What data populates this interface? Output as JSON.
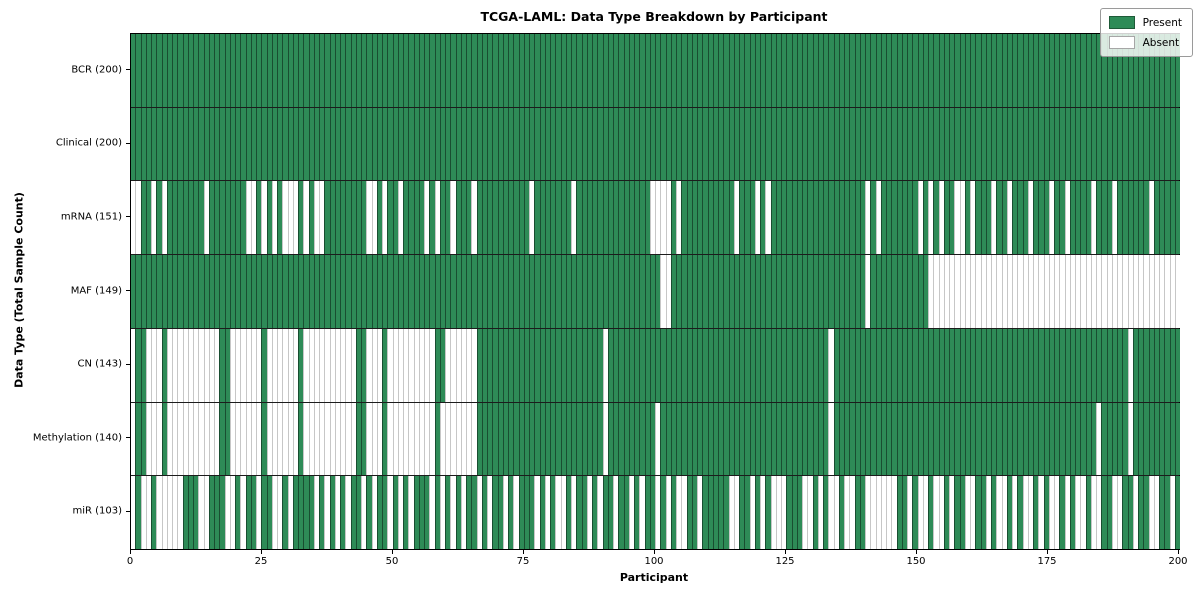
{
  "title": "TCGA-LAML: Data Type Breakdown by Participant",
  "x_axis": {
    "label": "Participant",
    "ticks": [
      0,
      25,
      50,
      75,
      100,
      125,
      150,
      175,
      200
    ]
  },
  "y_axis": {
    "label": "Data Type (Total Sample Count)"
  },
  "legend": {
    "present_label": "Present",
    "absent_label": "Absent"
  },
  "colors": {
    "present": "#2e8b57",
    "absent": "#ffffff",
    "plot_border": "#000000"
  },
  "chart_data": {
    "type": "heatmap",
    "x_range": [
      0,
      200
    ],
    "n_participants": 200,
    "legend_position": "upper right",
    "grid": "cell-borders",
    "rows": [
      {
        "label": "BCR (200)",
        "present_count": 200,
        "absent": []
      },
      {
        "label": "Clinical (200)",
        "present_count": 200,
        "absent": []
      },
      {
        "label": "mRNA (151)",
        "present_count": 151,
        "absent": [
          0,
          1,
          4,
          6,
          14,
          22,
          23,
          25,
          27,
          29,
          30,
          31,
          33,
          35,
          36,
          45,
          46,
          48,
          51,
          56,
          58,
          61,
          65,
          76,
          84,
          99,
          100,
          101,
          102,
          104,
          115,
          119,
          121,
          140,
          142,
          150,
          152,
          154,
          157,
          158,
          160,
          164,
          167,
          171,
          175,
          178,
          183,
          187,
          194
        ]
      },
      {
        "label": "MAF (149)",
        "present_count": 149,
        "absent": [
          101,
          102,
          140,
          152,
          153,
          154,
          155,
          156,
          157,
          158,
          159,
          160,
          161,
          162,
          163,
          164,
          165,
          166,
          167,
          168,
          169,
          170,
          171,
          172,
          173,
          174,
          175,
          176,
          177,
          178,
          179,
          180,
          181,
          182,
          183,
          184,
          185,
          186,
          187,
          188,
          189,
          190,
          191,
          192,
          193,
          194,
          195,
          196,
          197,
          198,
          199
        ]
      },
      {
        "label": "CN (143)",
        "present_count": 143,
        "absent": [
          0,
          3,
          4,
          5,
          7,
          8,
          9,
          10,
          11,
          12,
          13,
          14,
          15,
          16,
          19,
          20,
          21,
          22,
          23,
          24,
          26,
          27,
          28,
          29,
          30,
          31,
          33,
          34,
          35,
          36,
          37,
          38,
          39,
          40,
          41,
          42,
          45,
          46,
          47,
          49,
          50,
          51,
          52,
          53,
          54,
          55,
          56,
          57,
          60,
          61,
          62,
          63,
          64,
          65,
          90,
          133,
          190
        ]
      },
      {
        "label": "Methylation (140)",
        "present_count": 140,
        "absent": [
          0,
          3,
          4,
          5,
          7,
          8,
          9,
          10,
          11,
          12,
          13,
          14,
          15,
          16,
          19,
          20,
          21,
          22,
          23,
          24,
          26,
          27,
          28,
          29,
          30,
          31,
          33,
          34,
          35,
          36,
          37,
          38,
          39,
          40,
          41,
          42,
          45,
          46,
          47,
          49,
          50,
          51,
          52,
          53,
          54,
          55,
          56,
          57,
          59,
          60,
          61,
          62,
          63,
          64,
          65,
          90,
          100,
          133,
          184,
          190
        ]
      },
      {
        "label": "miR (103)",
        "present_count": 103,
        "absent": [
          0,
          2,
          3,
          5,
          6,
          7,
          8,
          9,
          13,
          14,
          18,
          19,
          21,
          24,
          27,
          28,
          30,
          35,
          37,
          39,
          41,
          44,
          46,
          49,
          51,
          53,
          57,
          59,
          61,
          63,
          66,
          68,
          71,
          73,
          77,
          79,
          81,
          82,
          84,
          87,
          89,
          92,
          95,
          97,
          100,
          102,
          104,
          105,
          108,
          114,
          115,
          118,
          120,
          122,
          123,
          124,
          128,
          129,
          131,
          133,
          134,
          136,
          137,
          140,
          141,
          142,
          143,
          144,
          145,
          148,
          150,
          151,
          153,
          154,
          156,
          159,
          160,
          163,
          165,
          166,
          168,
          170,
          171,
          173,
          175,
          176,
          178,
          180,
          181,
          183,
          184,
          187,
          188,
          191,
          194,
          195,
          198
        ]
      }
    ]
  }
}
